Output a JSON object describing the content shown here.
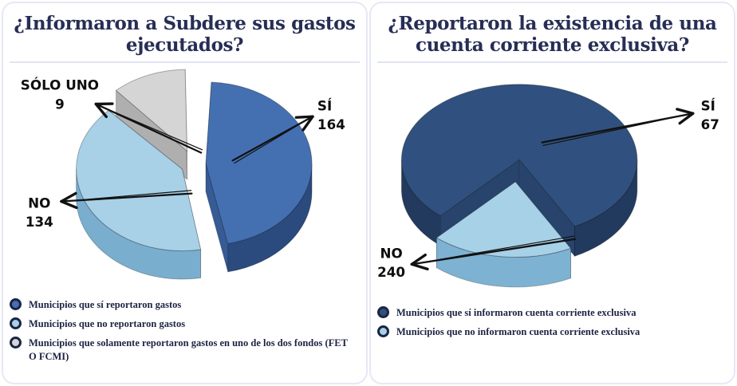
{
  "colors": {
    "title_text": "#272e55",
    "legend_text": "#1b2342",
    "legend_ring": "#1c2444",
    "divider": "#e2e5f3",
    "callout_text": "#0e0e0e",
    "arrow": "#111111"
  },
  "chart_data": [
    {
      "type": "pie",
      "style": "3d-exploded",
      "title": "¿Informaron a Subdere sus gastos ejecutados?",
      "legend_position": "bottom-left",
      "slices": [
        {
          "label": "SÍ",
          "value": 164,
          "color": "#4470b2",
          "side_color": "#2b4a7d",
          "legend": "Municipios que sí reportaron gastos"
        },
        {
          "label": "NO",
          "value": 134,
          "color": "#a8d1e7",
          "side_color": "#7aaecf",
          "legend": "Municipios que no reportaron gastos"
        },
        {
          "label": "SÓLO UNO",
          "value": 9,
          "color": "#d5d5d5",
          "side_color": "#8f8f8f",
          "legend": "Municipios que solamente reportaron gastos en uno de los dos fondos (FET O FCMI)"
        }
      ]
    },
    {
      "type": "pie",
      "style": "3d-exploded",
      "title": "¿Reportaron la existencia de una cuenta corriente exclusiva?",
      "legend_position": "bottom-left",
      "slices": [
        {
          "label": "SÍ",
          "value": 67,
          "color": "#30517f",
          "side_color": "#223a5e",
          "legend": "Municipios que sí informaron cuenta corriente exclusiva"
        },
        {
          "label": "NO",
          "value": 240,
          "color": "#a7d1e7",
          "side_color": "#7db2d3",
          "legend": "Municipios que no informaron cuenta corriente exclusiva"
        }
      ]
    }
  ]
}
